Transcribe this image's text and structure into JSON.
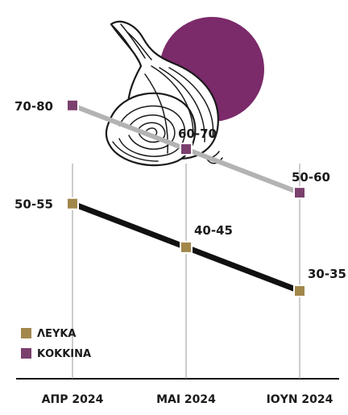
{
  "chart_data": {
    "type": "line",
    "categories": [
      "ΑΠΡ 2024",
      "ΜΑΙ 2024",
      "ΙΟΥΝ 2024"
    ],
    "series": [
      {
        "name": "ΚΟΚΚΙΝΑ",
        "color": "#7b3f6e",
        "line_color": "#b3b3b3",
        "value_labels": [
          "70-80",
          "60-70",
          "50-60"
        ],
        "values": [
          75,
          65,
          55
        ]
      },
      {
        "name": "ΛΕΥΚΑ",
        "color": "#a2874b",
        "line_color": "#111111",
        "value_labels": [
          "50-55",
          "40-45",
          "30-35"
        ],
        "values": [
          52.5,
          42.5,
          32.5
        ]
      }
    ],
    "ylim": [
      29,
      77
    ],
    "grid": false,
    "legend_position": "bottom-left"
  },
  "illustration": {
    "icon": "onion-icon",
    "accent_color": "#7b2a6a"
  }
}
